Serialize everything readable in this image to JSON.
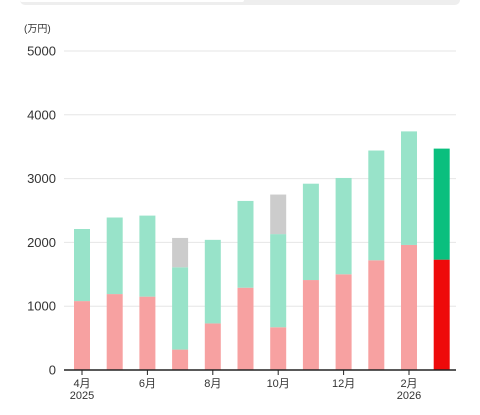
{
  "tabs": {
    "count": 2,
    "selected": 0
  },
  "chart_data": {
    "type": "bar",
    "stacked": true,
    "title": "",
    "ylabel": "(万円)",
    "ylim": [
      0,
      5000
    ],
    "yticks": [
      0,
      1000,
      2000,
      3000,
      4000,
      5000
    ],
    "grid": true,
    "categories": [
      "2025-04",
      "2025-05",
      "2025-06",
      "2025-07",
      "2025-08",
      "2025-09",
      "2025-10",
      "2025-11",
      "2025-12",
      "2026-01",
      "2026-02",
      "2026-03"
    ],
    "xtick_labels": [
      {
        "index": 0,
        "month": "4月",
        "year": "2025"
      },
      {
        "index": 2,
        "month": "6月",
        "year": ""
      },
      {
        "index": 4,
        "month": "8月",
        "year": ""
      },
      {
        "index": 6,
        "month": "10月",
        "year": ""
      },
      {
        "index": 8,
        "month": "12月",
        "year": ""
      },
      {
        "index": 10,
        "month": "2月",
        "year": "2026"
      }
    ],
    "highlight_index": 11,
    "series": [
      {
        "values": [
          1080,
          1190,
          1150,
          320,
          730,
          1290,
          670,
          1410,
          1500,
          1720,
          1960,
          1730
        ],
        "color": "#f7a1a1",
        "highlight_color": "#ee0a0a"
      },
      {
        "values": [
          1130,
          1200,
          1270,
          1290,
          1310,
          1360,
          1460,
          1510,
          1510,
          1720,
          1780,
          1740
        ],
        "color": "#98e3c9",
        "highlight_color": "#0abf7e"
      },
      {
        "values": [
          0,
          0,
          0,
          460,
          0,
          0,
          620,
          0,
          0,
          0,
          0,
          0
        ],
        "color": "#cccccc",
        "highlight_color": "#cccccc"
      }
    ]
  }
}
